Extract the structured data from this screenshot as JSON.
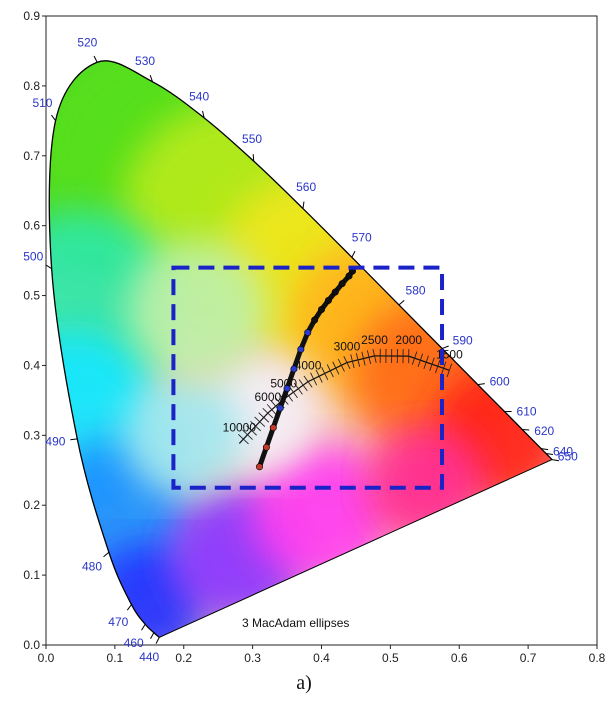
{
  "chart_data": {
    "type": "scatter",
    "title": "",
    "xlabel": "",
    "ylabel": "",
    "xlim": [
      0.0,
      0.8
    ],
    "ylim": [
      0.0,
      0.9
    ],
    "x_ticks": [
      "0.0",
      "0.1",
      "0.2",
      "0.3",
      "0.4",
      "0.5",
      "0.6",
      "0.7",
      "0.8"
    ],
    "y_ticks": [
      "0.0",
      "0.1",
      "0.2",
      "0.3",
      "0.4",
      "0.5",
      "0.6",
      "0.7",
      "0.8",
      "0.9"
    ],
    "grid": false,
    "spectral_locus": [
      {
        "nm": 440,
        "x": 0.1644,
        "y": 0.0109
      },
      {
        "nm": 450,
        "x": 0.1566,
        "y": 0.0177
      },
      {
        "nm": 460,
        "x": 0.144,
        "y": 0.0297
      },
      {
        "nm": 470,
        "x": 0.1241,
        "y": 0.0578
      },
      {
        "nm": 480,
        "x": 0.0913,
        "y": 0.1327
      },
      {
        "nm": 490,
        "x": 0.0454,
        "y": 0.295
      },
      {
        "nm": 500,
        "x": 0.0082,
        "y": 0.5384
      },
      {
        "nm": 510,
        "x": 0.0139,
        "y": 0.7502
      },
      {
        "nm": 520,
        "x": 0.0743,
        "y": 0.8338
      },
      {
        "nm": 530,
        "x": 0.1547,
        "y": 0.8059
      },
      {
        "nm": 540,
        "x": 0.2296,
        "y": 0.7543
      },
      {
        "nm": 550,
        "x": 0.3016,
        "y": 0.6923
      },
      {
        "nm": 560,
        "x": 0.3731,
        "y": 0.6245
      },
      {
        "nm": 570,
        "x": 0.4441,
        "y": 0.5547
      },
      {
        "nm": 580,
        "x": 0.5125,
        "y": 0.4866
      },
      {
        "nm": 590,
        "x": 0.5752,
        "y": 0.4242
      },
      {
        "nm": 600,
        "x": 0.627,
        "y": 0.3725
      },
      {
        "nm": 610,
        "x": 0.6658,
        "y": 0.334
      },
      {
        "nm": 620,
        "x": 0.6915,
        "y": 0.3083
      },
      {
        "nm": 640,
        "x": 0.719,
        "y": 0.2809
      },
      {
        "nm": 650,
        "x": 0.726,
        "y": 0.274
      },
      {
        "nm": 700,
        "x": 0.7347,
        "y": 0.2653
      }
    ],
    "wavelength_labels": [
      "440",
      "460",
      "470",
      "480",
      "490",
      "500",
      "510",
      "520",
      "530",
      "540",
      "550",
      "560",
      "570",
      "580",
      "590",
      "600",
      "610",
      "620",
      "640",
      "650"
    ],
    "planckian_locus": [
      {
        "cct": 1500,
        "x": 0.5857,
        "y": 0.3931
      },
      {
        "cct": 2000,
        "x": 0.5267,
        "y": 0.4133
      },
      {
        "cct": 2500,
        "x": 0.477,
        "y": 0.4137
      },
      {
        "cct": 3000,
        "x": 0.4369,
        "y": 0.4041
      },
      {
        "cct": 4000,
        "x": 0.3805,
        "y": 0.3768
      },
      {
        "cct": 5000,
        "x": 0.3451,
        "y": 0.3516
      },
      {
        "cct": 6000,
        "x": 0.3221,
        "y": 0.3318
      },
      {
        "cct": 10000,
        "x": 0.2807,
        "y": 0.2884
      }
    ],
    "cct_labels": [
      "10000",
      "6000",
      "5000",
      "4000",
      "3000",
      "2500",
      "2000",
      "1500"
    ],
    "measured_line": {
      "x": [
        0.31,
        0.32,
        0.33,
        0.34,
        0.35,
        0.36,
        0.37,
        0.38,
        0.39,
        0.4,
        0.41,
        0.42,
        0.43,
        0.44,
        0.445
      ],
      "y": [
        0.255,
        0.283,
        0.311,
        0.339,
        0.367,
        0.395,
        0.423,
        0.447,
        0.465,
        0.48,
        0.493,
        0.505,
        0.517,
        0.528,
        0.535
      ]
    },
    "selection_box": {
      "x": [
        0.185,
        0.575
      ],
      "y": [
        0.225,
        0.54
      ],
      "color": "#1a22c8",
      "style": "dashed"
    },
    "annotation": "3  MacAdam ellipses",
    "caption": "a)",
    "colors": {
      "wavelength_text": "#2a35c8",
      "box": "#1a22c8",
      "locus": "#000000"
    }
  }
}
